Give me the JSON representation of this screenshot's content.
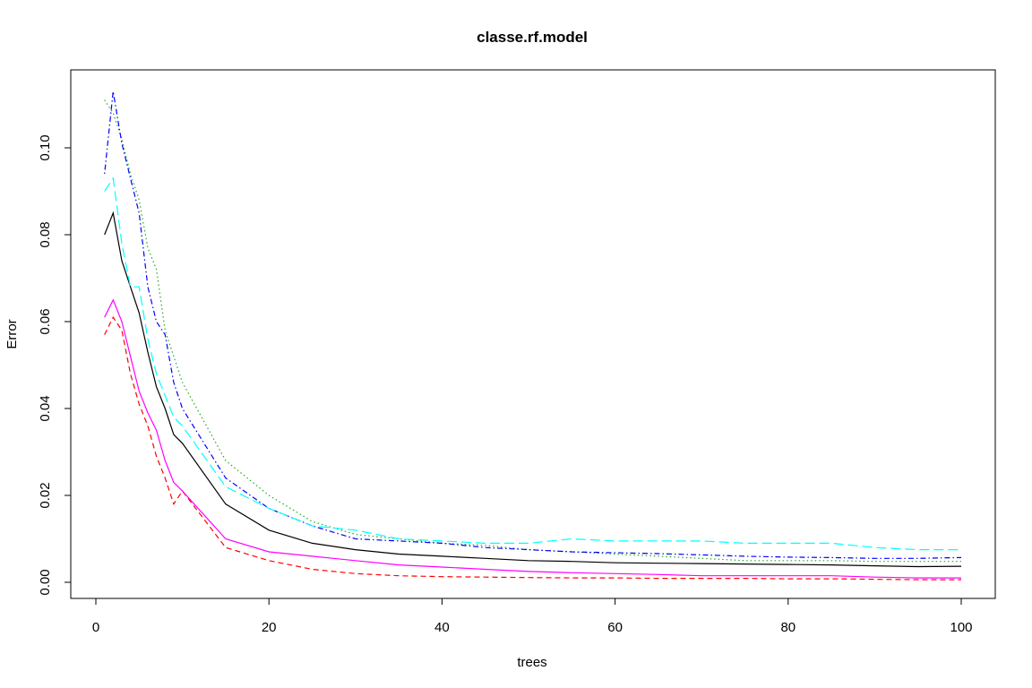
{
  "chart_data": {
    "type": "line",
    "title": "classe.rf.model",
    "xlabel": "trees",
    "ylabel": "Error",
    "xlim": [
      0,
      100
    ],
    "ylim": [
      0,
      0.11
    ],
    "xticks": [
      0,
      20,
      40,
      60,
      80,
      100
    ],
    "yticks": [
      0.0,
      0.02,
      0.04,
      0.06,
      0.08,
      0.1
    ],
    "ytick_labels": [
      "0.00",
      "0.02",
      "0.04",
      "0.06",
      "0.08",
      "0.10"
    ],
    "grid": false,
    "legend": "none",
    "x": [
      1,
      2,
      3,
      4,
      5,
      6,
      7,
      8,
      9,
      10,
      15,
      20,
      25,
      30,
      35,
      40,
      45,
      50,
      55,
      60,
      65,
      70,
      75,
      80,
      85,
      90,
      95,
      100
    ],
    "series": [
      {
        "color": "#000000",
        "dash": "solid",
        "values": [
          0.08,
          0.085,
          0.074,
          0.068,
          0.062,
          0.053,
          0.045,
          0.04,
          0.034,
          0.032,
          0.018,
          0.012,
          0.009,
          0.0075,
          0.0065,
          0.006,
          0.0055,
          0.005,
          0.0048,
          0.0045,
          0.0044,
          0.0043,
          0.0042,
          0.0041,
          0.004,
          0.0038,
          0.0036,
          0.0037
        ]
      },
      {
        "color": "#ff0000",
        "dash": "dashed",
        "values": [
          0.057,
          0.061,
          0.058,
          0.048,
          0.041,
          0.036,
          0.029,
          0.024,
          0.018,
          0.021,
          0.008,
          0.005,
          0.003,
          0.002,
          0.0015,
          0.0013,
          0.0012,
          0.0011,
          0.001,
          0.001,
          0.0009,
          0.0009,
          0.0009,
          0.0008,
          0.0008,
          0.0007,
          0.0006,
          0.0006
        ]
      },
      {
        "color": "#22aa22",
        "dash": "dotted",
        "values": [
          0.111,
          0.108,
          0.102,
          0.094,
          0.088,
          0.077,
          0.072,
          0.058,
          0.052,
          0.046,
          0.028,
          0.02,
          0.014,
          0.011,
          0.01,
          0.009,
          0.0085,
          0.0075,
          0.007,
          0.0065,
          0.006,
          0.0055,
          0.005,
          0.005,
          0.005,
          0.0048,
          0.0048,
          0.0048
        ]
      },
      {
        "color": "#0000ff",
        "dash": "dotdash",
        "values": [
          0.094,
          0.113,
          0.101,
          0.093,
          0.085,
          0.068,
          0.06,
          0.057,
          0.046,
          0.04,
          0.024,
          0.017,
          0.013,
          0.01,
          0.0095,
          0.009,
          0.008,
          0.0075,
          0.007,
          0.0068,
          0.0066,
          0.0063,
          0.006,
          0.0058,
          0.0057,
          0.0055,
          0.0055,
          0.0057
        ]
      },
      {
        "color": "#00ffff",
        "dash": "longdash",
        "values": [
          0.09,
          0.093,
          0.078,
          0.068,
          0.068,
          0.056,
          0.048,
          0.043,
          0.038,
          0.036,
          0.022,
          0.017,
          0.013,
          0.012,
          0.01,
          0.0095,
          0.009,
          0.009,
          0.01,
          0.0095,
          0.0095,
          0.0095,
          0.009,
          0.009,
          0.009,
          0.008,
          0.0075,
          0.0075
        ]
      },
      {
        "color": "#ff00ff",
        "dash": "solid",
        "values": [
          0.061,
          0.065,
          0.06,
          0.052,
          0.044,
          0.039,
          0.035,
          0.028,
          0.023,
          0.021,
          0.01,
          0.007,
          0.006,
          0.005,
          0.004,
          0.0035,
          0.003,
          0.0025,
          0.0022,
          0.002,
          0.0018,
          0.0015,
          0.0015,
          0.0015,
          0.0015,
          0.0012,
          0.001,
          0.001
        ]
      }
    ]
  }
}
